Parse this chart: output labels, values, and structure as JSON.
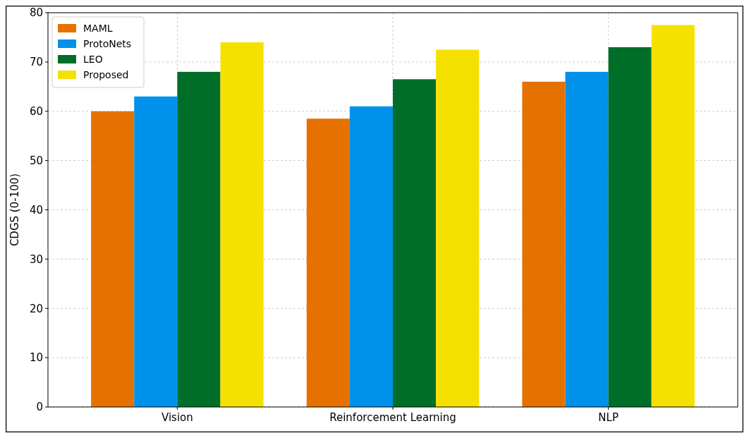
{
  "chart_data": {
    "type": "bar",
    "ylabel": "CDGS (0-100)",
    "categories": [
      "Vision",
      "Reinforcement Learning",
      "NLP"
    ],
    "series": [
      {
        "name": "MAML",
        "color": "#e57200",
        "values": [
          60,
          58.5,
          66
        ]
      },
      {
        "name": "ProtoNets",
        "color": "#0091ea",
        "values": [
          63,
          61,
          68
        ]
      },
      {
        "name": "LEO",
        "color": "#006e28",
        "values": [
          68,
          66.5,
          73
        ]
      },
      {
        "name": "Proposed",
        "color": "#f5e100",
        "values": [
          74,
          72.5,
          77.5
        ]
      }
    ],
    "ylim": [
      0,
      80
    ],
    "yticks": [
      0,
      10,
      20,
      30,
      40,
      50,
      60,
      70,
      80
    ],
    "grid": true,
    "legend": "top left"
  }
}
